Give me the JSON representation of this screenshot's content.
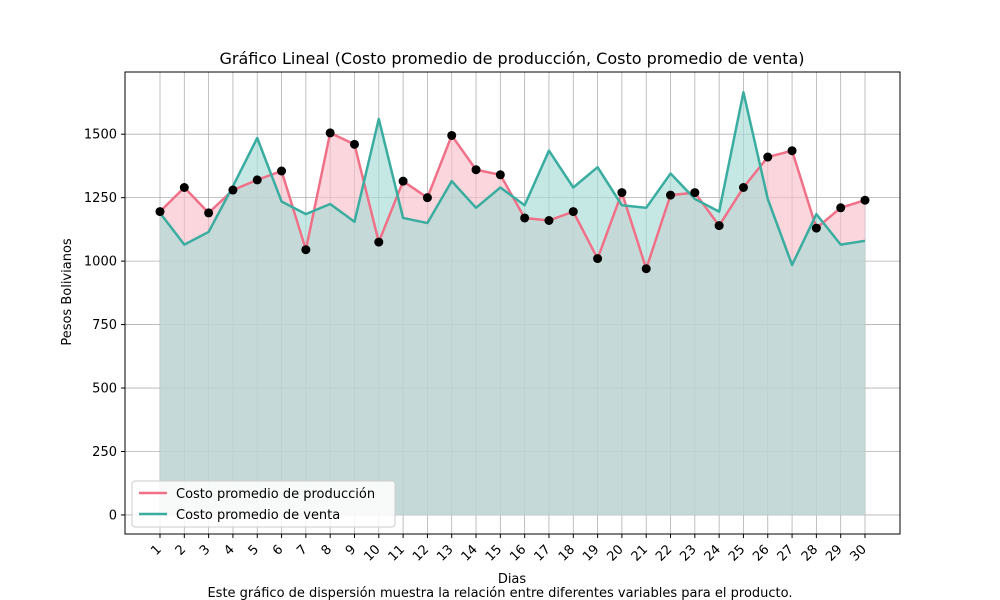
{
  "chart_data": {
    "type": "line",
    "title": "Gráfico Lineal (Costo promedio de producción, Costo promedio de venta)",
    "xlabel": "Dias",
    "ylabel": "Pesos Bolivianos",
    "caption": "Este gráfico de dispersión muestra la relación entre diferentes variables para el producto.",
    "categories": [
      "1",
      "2",
      "3",
      "4",
      "5",
      "6",
      "7",
      "8",
      "9",
      "10",
      "11",
      "12",
      "13",
      "14",
      "15",
      "16",
      "17",
      "18",
      "19",
      "20",
      "21",
      "22",
      "23",
      "24",
      "25",
      "26",
      "27",
      "28",
      "29",
      "30"
    ],
    "ylim": [
      -75,
      1745
    ],
    "yticks": [
      0,
      250,
      500,
      750,
      1000,
      1250,
      1500
    ],
    "grid": true,
    "legend_position": "lower-left",
    "series": [
      {
        "name": "Costo promedio de producción",
        "color": "#f07088",
        "fill_color": "#f9c0cb",
        "markers": true,
        "values": [
          1195,
          1290,
          1190,
          1280,
          1320,
          1355,
          1045,
          1505,
          1460,
          1075,
          1315,
          1250,
          1495,
          1360,
          1340,
          1170,
          1160,
          1195,
          1010,
          1270,
          970,
          1260,
          1270,
          1140,
          1290,
          1410,
          1435,
          1130,
          1210,
          1240
        ]
      },
      {
        "name": "Costo promedio de venta",
        "color": "#3aada0",
        "fill_color": "#a8dcd6",
        "markers": false,
        "values": [
          1190,
          1065,
          1115,
          1295,
          1485,
          1235,
          1185,
          1225,
          1155,
          1560,
          1170,
          1150,
          1315,
          1210,
          1290,
          1220,
          1435,
          1290,
          1370,
          1220,
          1210,
          1345,
          1245,
          1195,
          1665,
          1245,
          985,
          1185,
          1065,
          1080
        ]
      }
    ]
  }
}
